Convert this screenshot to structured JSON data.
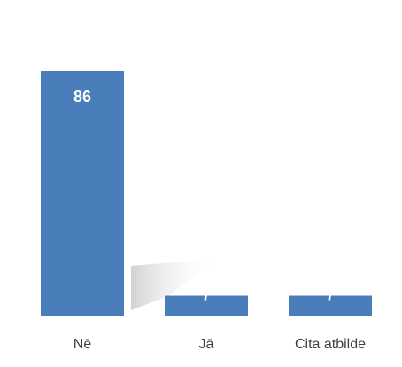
{
  "chart_data": {
    "type": "bar",
    "categories": [
      "Nē",
      "Jā",
      "Cita atbilde"
    ],
    "values": [
      86,
      7,
      7
    ],
    "color": "#4a7ebb"
  }
}
